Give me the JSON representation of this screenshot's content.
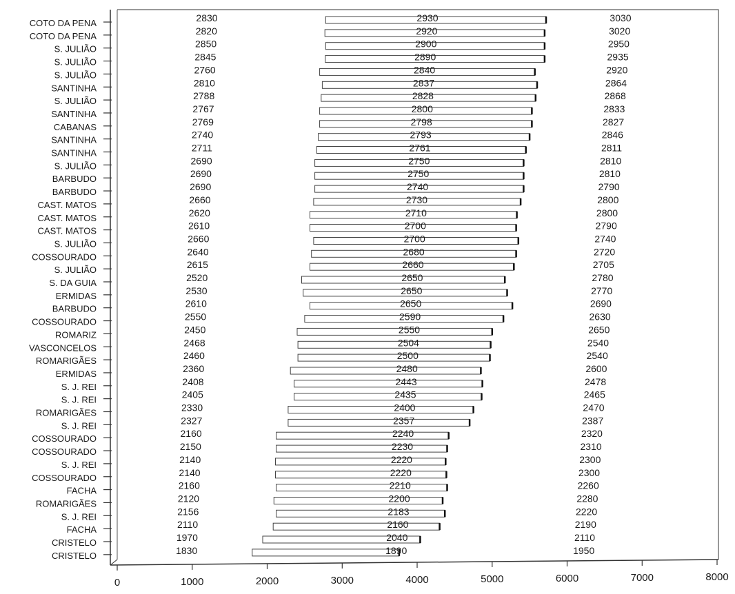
{
  "chart_data": {
    "type": "bar",
    "title": "",
    "xlabel": "",
    "ylabel": "",
    "xlim": [
      0,
      8000
    ],
    "xticks": [
      "0",
      "1000",
      "2000",
      "3000",
      "4000",
      "5000",
      "6000",
      "7000",
      "8000"
    ],
    "grid": false,
    "legend": "none",
    "bar_color": "#ffffff",
    "rows": [
      {
        "site": "COTO DA PENA",
        "min": 2830,
        "mid": 2930,
        "max": 3030,
        "bar_start": 2780,
        "bar_end": 5720
      },
      {
        "site": "COTO DA PENA",
        "min": 2820,
        "mid": 2920,
        "max": 3020,
        "bar_start": 2770,
        "bar_end": 5700
      },
      {
        "site": "S. JULIÃO",
        "min": 2850,
        "mid": 2900,
        "max": 2950,
        "bar_start": 2780,
        "bar_end": 5700
      },
      {
        "site": "S. JULIÃO",
        "min": 2845,
        "mid": 2890,
        "max": 2935,
        "bar_start": 2775,
        "bar_end": 5700
      },
      {
        "site": "S. JULIÃO",
        "min": 2760,
        "mid": 2840,
        "max": 2920,
        "bar_start": 2700,
        "bar_end": 5570
      },
      {
        "site": "SANTINHA",
        "min": 2810,
        "mid": 2837,
        "max": 2864,
        "bar_start": 2735,
        "bar_end": 5600
      },
      {
        "site": "S. JULIÃO",
        "min": 2788,
        "mid": 2828,
        "max": 2868,
        "bar_start": 2720,
        "bar_end": 5580
      },
      {
        "site": "SANTINHA",
        "min": 2767,
        "mid": 2800,
        "max": 2833,
        "bar_start": 2700,
        "bar_end": 5530
      },
      {
        "site": "CABANAS",
        "min": 2769,
        "mid": 2798,
        "max": 2827,
        "bar_start": 2700,
        "bar_end": 5530
      },
      {
        "site": "SANTINHA",
        "min": 2740,
        "mid": 2793,
        "max": 2846,
        "bar_start": 2680,
        "bar_end": 5500
      },
      {
        "site": "SANTINHA",
        "min": 2711,
        "mid": 2761,
        "max": 2811,
        "bar_start": 2660,
        "bar_end": 5450
      },
      {
        "site": "S. JULIÃO",
        "min": 2690,
        "mid": 2750,
        "max": 2810,
        "bar_start": 2635,
        "bar_end": 5420
      },
      {
        "site": "BARBUDO",
        "min": 2690,
        "mid": 2750,
        "max": 2810,
        "bar_start": 2635,
        "bar_end": 5420
      },
      {
        "site": "BARBUDO",
        "min": 2690,
        "mid": 2740,
        "max": 2790,
        "bar_start": 2635,
        "bar_end": 5420
      },
      {
        "site": "CAST. MATOS",
        "min": 2660,
        "mid": 2730,
        "max": 2800,
        "bar_start": 2620,
        "bar_end": 5380
      },
      {
        "site": "CAST. MATOS",
        "min": 2620,
        "mid": 2710,
        "max": 2800,
        "bar_start": 2570,
        "bar_end": 5330
      },
      {
        "site": "CAST. MATOS",
        "min": 2610,
        "mid": 2700,
        "max": 2790,
        "bar_start": 2570,
        "bar_end": 5320
      },
      {
        "site": "S. JULIÃO",
        "min": 2660,
        "mid": 2700,
        "max": 2740,
        "bar_start": 2620,
        "bar_end": 5350
      },
      {
        "site": "COSSOURADO",
        "min": 2640,
        "mid": 2680,
        "max": 2720,
        "bar_start": 2590,
        "bar_end": 5320
      },
      {
        "site": "S. JULIÃO",
        "min": 2615,
        "mid": 2660,
        "max": 2705,
        "bar_start": 2570,
        "bar_end": 5290
      },
      {
        "site": "S. DA GUIA",
        "min": 2520,
        "mid": 2650,
        "max": 2780,
        "bar_start": 2460,
        "bar_end": 5170
      },
      {
        "site": "ERMIDAS",
        "min": 2530,
        "mid": 2650,
        "max": 2770,
        "bar_start": 2480,
        "bar_end": 5200
      },
      {
        "site": "BARBUDO",
        "min": 2610,
        "mid": 2650,
        "max": 2690,
        "bar_start": 2570,
        "bar_end": 5270
      },
      {
        "site": "COSSOURADO",
        "min": 2550,
        "mid": 2590,
        "max": 2630,
        "bar_start": 2500,
        "bar_end": 5150
      },
      {
        "site": "ROMARIZ",
        "min": 2450,
        "mid": 2550,
        "max": 2650,
        "bar_start": 2400,
        "bar_end": 5000
      },
      {
        "site": "VASCONCELOS",
        "min": 2468,
        "mid": 2504,
        "max": 2540,
        "bar_start": 2410,
        "bar_end": 4980
      },
      {
        "site": "ROMARIGÃES",
        "min": 2460,
        "mid": 2500,
        "max": 2540,
        "bar_start": 2410,
        "bar_end": 4970
      },
      {
        "site": "ERMIDAS",
        "min": 2360,
        "mid": 2480,
        "max": 2600,
        "bar_start": 2310,
        "bar_end": 4850
      },
      {
        "site": "S. J. REI",
        "min": 2408,
        "mid": 2443,
        "max": 2478,
        "bar_start": 2360,
        "bar_end": 4870
      },
      {
        "site": "S. J. REI",
        "min": 2405,
        "mid": 2435,
        "max": 2465,
        "bar_start": 2360,
        "bar_end": 4860
      },
      {
        "site": "ROMARIGÃES",
        "min": 2330,
        "mid": 2400,
        "max": 2470,
        "bar_start": 2280,
        "bar_end": 4750
      },
      {
        "site": "S. J. REI",
        "min": 2327,
        "mid": 2357,
        "max": 2387,
        "bar_start": 2280,
        "bar_end": 4700
      },
      {
        "site": "COSSOURADO",
        "min": 2160,
        "mid": 2240,
        "max": 2320,
        "bar_start": 2120,
        "bar_end": 4420
      },
      {
        "site": "COSSOURADO",
        "min": 2150,
        "mid": 2230,
        "max": 2310,
        "bar_start": 2120,
        "bar_end": 4400
      },
      {
        "site": "S. J. REI",
        "min": 2140,
        "mid": 2220,
        "max": 2300,
        "bar_start": 2110,
        "bar_end": 4380
      },
      {
        "site": "COSSOURADO",
        "min": 2140,
        "mid": 2220,
        "max": 2300,
        "bar_start": 2110,
        "bar_end": 4390
      },
      {
        "site": "FACHA",
        "min": 2160,
        "mid": 2210,
        "max": 2260,
        "bar_start": 2120,
        "bar_end": 4400
      },
      {
        "site": "ROMARIGÃES",
        "min": 2120,
        "mid": 2200,
        "max": 2280,
        "bar_start": 2090,
        "bar_end": 4340
      },
      {
        "site": "S. J. REI",
        "min": 2156,
        "mid": 2183,
        "max": 2220,
        "bar_start": 2120,
        "bar_end": 4370
      },
      {
        "site": "FACHA",
        "min": 2110,
        "mid": 2160,
        "max": 2190,
        "bar_start": 2080,
        "bar_end": 4300
      },
      {
        "site": "CRISTELO",
        "min": 1970,
        "mid": 2040,
        "max": 2110,
        "bar_start": 1940,
        "bar_end": 4040
      },
      {
        "site": "CRISTELO",
        "min": 1830,
        "mid": 1890,
        "max": 1950,
        "bar_start": 1800,
        "bar_end": 3760
      }
    ]
  }
}
